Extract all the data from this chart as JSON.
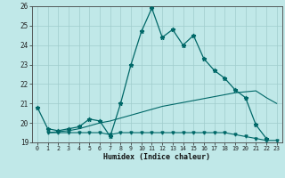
{
  "xlabel": "Humidex (Indice chaleur)",
  "bg_color": "#c0e8e8",
  "grid_color": "#a0cccc",
  "line_color": "#006868",
  "xlim": [
    -0.5,
    23.5
  ],
  "ylim": [
    19,
    26
  ],
  "yticks": [
    19,
    20,
    21,
    22,
    23,
    24,
    25,
    26
  ],
  "xticks": [
    0,
    1,
    2,
    3,
    4,
    5,
    6,
    7,
    8,
    9,
    10,
    11,
    12,
    13,
    14,
    15,
    16,
    17,
    18,
    19,
    20,
    21,
    22,
    23
  ],
  "line1_x": [
    0,
    1,
    2,
    3,
    4,
    5,
    6,
    7,
    8,
    9,
    10,
    11,
    12,
    13,
    14,
    15,
    16,
    17,
    18,
    19,
    20,
    21,
    22
  ],
  "line1_y": [
    20.8,
    19.7,
    19.6,
    19.7,
    19.8,
    20.2,
    20.1,
    19.3,
    21.0,
    23.0,
    24.7,
    25.9,
    24.4,
    24.8,
    24.0,
    24.5,
    23.3,
    22.7,
    22.3,
    21.7,
    21.3,
    19.9,
    19.2
  ],
  "line2_x": [
    1,
    2,
    3,
    4,
    5,
    6,
    7,
    8,
    9,
    10,
    11,
    12,
    13,
    14,
    15,
    16,
    17,
    18,
    19,
    20,
    21,
    22,
    23
  ],
  "line2_y": [
    19.5,
    19.5,
    19.5,
    19.5,
    19.5,
    19.5,
    19.4,
    19.5,
    19.5,
    19.5,
    19.5,
    19.5,
    19.5,
    19.5,
    19.5,
    19.5,
    19.5,
    19.5,
    19.4,
    19.3,
    19.2,
    19.1,
    19.1
  ],
  "line3_x": [
    1,
    2,
    3,
    4,
    5,
    6,
    7,
    8,
    9,
    10,
    11,
    12,
    13,
    14,
    15,
    16,
    17,
    18,
    19,
    20,
    21,
    22,
    23
  ],
  "line3_y": [
    19.5,
    19.55,
    19.6,
    19.7,
    19.85,
    20.0,
    20.1,
    20.25,
    20.4,
    20.55,
    20.7,
    20.85,
    20.95,
    21.05,
    21.15,
    21.25,
    21.35,
    21.45,
    21.55,
    21.6,
    21.65,
    21.3,
    21.0
  ]
}
